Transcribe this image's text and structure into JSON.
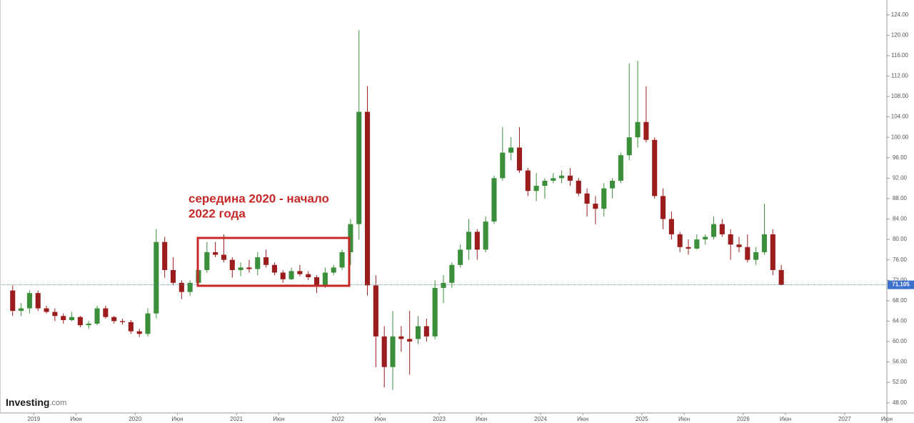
{
  "chart_data": {
    "type": "candlestick",
    "annotation": [
      "середина 2020 - начало",
      "2022 года"
    ],
    "logo": "Investing",
    "logo_suffix": ".com",
    "up_color": "#3b8f3b",
    "down_color": "#9b1c1c",
    "annotation_color": "#c62828",
    "last_price": 71.105,
    "last_price_color": "#3d6fcc",
    "xlim": [
      "2018-09",
      "2027-06"
    ],
    "ylim": [
      46,
      126.9
    ],
    "yticks": [
      {
        "value": 48,
        "label": "48.00"
      },
      {
        "value": 52,
        "label": "52.00"
      },
      {
        "value": 56,
        "label": "56.00"
      },
      {
        "value": 60,
        "label": "60.00"
      },
      {
        "value": 64,
        "label": "64.00"
      },
      {
        "value": 68,
        "label": "68.00"
      },
      {
        "value": 72,
        "label": "72.00"
      },
      {
        "value": 76,
        "label": "76.00"
      },
      {
        "value": 80,
        "label": "80.00"
      },
      {
        "value": 84,
        "label": "84.00"
      },
      {
        "value": 88,
        "label": "88.00"
      },
      {
        "value": 92,
        "label": "92.00"
      },
      {
        "value": 96,
        "label": "96.00"
      },
      {
        "value": 100,
        "label": "100.00"
      },
      {
        "value": 104,
        "label": "104.00"
      },
      {
        "value": 108,
        "label": "108.00"
      },
      {
        "value": 112,
        "label": "112.00"
      },
      {
        "value": 116,
        "label": "116.00"
      },
      {
        "value": 120,
        "label": "120.00"
      },
      {
        "value": 124,
        "label": "124.00"
      }
    ],
    "xticks": [
      {
        "value": "2019-01",
        "label": "2019"
      },
      {
        "value": "2019-06",
        "label": "Июн"
      },
      {
        "value": "2020-01",
        "label": "2020"
      },
      {
        "value": "2020-06",
        "label": "Июн"
      },
      {
        "value": "2021-01",
        "label": "2021"
      },
      {
        "value": "2021-06",
        "label": "Июн"
      },
      {
        "value": "2022-01",
        "label": "2022"
      },
      {
        "value": "2022-06",
        "label": "Июн"
      },
      {
        "value": "2023-01",
        "label": "2023"
      },
      {
        "value": "2023-06",
        "label": "Июн"
      },
      {
        "value": "2024-01",
        "label": "2024"
      },
      {
        "value": "2024-06",
        "label": "Июн"
      },
      {
        "value": "2025-01",
        "label": "2025"
      },
      {
        "value": "2025-06",
        "label": "Июн"
      },
      {
        "value": "2026-01",
        "label": "2026"
      },
      {
        "value": "2026-06",
        "label": "Июн"
      },
      {
        "value": "2027-01",
        "label": "2027"
      },
      {
        "value": "2027-06",
        "label": "Июн"
      }
    ],
    "x": [
      "2018-10",
      "2018-11",
      "2018-12",
      "2019-01",
      "2019-02",
      "2019-03",
      "2019-04",
      "2019-05",
      "2019-06",
      "2019-07",
      "2019-08",
      "2019-09",
      "2019-10",
      "2019-11",
      "2019-12",
      "2020-01",
      "2020-02",
      "2020-03",
      "2020-04",
      "2020-05",
      "2020-06",
      "2020-07",
      "2020-08",
      "2020-09",
      "2020-10",
      "2020-11",
      "2020-12",
      "2021-01",
      "2021-02",
      "2021-03",
      "2021-04",
      "2021-05",
      "2021-06",
      "2021-07",
      "2021-08",
      "2021-09",
      "2021-10",
      "2021-11",
      "2021-12",
      "2022-01",
      "2022-02",
      "2022-03",
      "2022-04",
      "2022-05",
      "2022-06",
      "2022-07",
      "2022-08",
      "2022-09",
      "2022-10",
      "2022-11",
      "2022-12",
      "2023-01",
      "2023-02",
      "2023-03",
      "2023-04",
      "2023-05",
      "2023-06",
      "2023-07",
      "2023-08",
      "2023-09",
      "2023-10",
      "2023-11",
      "2023-12",
      "2024-01",
      "2024-02",
      "2024-03",
      "2024-04",
      "2024-05",
      "2024-06",
      "2024-07",
      "2024-08",
      "2024-09",
      "2024-10",
      "2024-11",
      "2024-12",
      "2025-01",
      "2025-02",
      "2025-03",
      "2025-04",
      "2025-05",
      "2025-06",
      "2025-07",
      "2025-08",
      "2025-09",
      "2025-10",
      "2025-11",
      "2025-12",
      "2026-01",
      "2026-02",
      "2026-03",
      "2026-04",
      "2026-05"
    ],
    "open": [
      70,
      66,
      66.5,
      69.5,
      66.5,
      65.8,
      65,
      64.2,
      64.8,
      63.2,
      63.5,
      66.5,
      64.8,
      64,
      63.8,
      62,
      61.5,
      65.5,
      79.5,
      74,
      71.5,
      69.7,
      71.5,
      74,
      77.5,
      77,
      76,
      74,
      74.5,
      74.2,
      76.5,
      75,
      73.5,
      72.2,
      73.8,
      73.2,
      72.6,
      71,
      73.5,
      74.5,
      77.5,
      83,
      105,
      71,
      61,
      55,
      61,
      60.5,
      60.5,
      63,
      61,
      70.5,
      71.5,
      75,
      78,
      81.5,
      78,
      83.5,
      92,
      97,
      98,
      93.5,
      89.5,
      90.5,
      91.5,
      92,
      92.5,
      91.5,
      89,
      87,
      86,
      90,
      91.5,
      96.5,
      100,
      103,
      99.5,
      88.5,
      84,
      81,
      78.5,
      78.2,
      80,
      80.5,
      83,
      81,
      79,
      78.5,
      76,
      77.5,
      81,
      74
    ],
    "high": [
      71,
      67.5,
      70,
      70,
      67,
      66.5,
      65.5,
      65.8,
      65,
      64,
      67,
      67,
      65,
      64.5,
      64.2,
      62.5,
      66.5,
      82,
      80.5,
      76.5,
      72,
      72,
      75.5,
      79.5,
      79.5,
      81,
      76.5,
      75.5,
      76,
      77.5,
      78,
      75.5,
      74,
      74.5,
      75,
      73.8,
      73,
      74.5,
      75,
      78,
      84,
      121,
      110,
      73,
      63,
      66,
      63,
      66,
      65,
      64.5,
      72,
      73,
      75.5,
      79,
      84,
      82,
      84.5,
      92.5,
      102,
      100,
      102,
      94,
      93,
      92,
      93,
      93.5,
      94,
      92,
      90,
      88.5,
      91,
      92,
      97,
      114.5,
      115,
      110,
      100,
      90,
      85.5,
      81.5,
      80,
      81,
      81,
      84.5,
      84,
      82,
      80.5,
      81,
      78.5,
      87,
      82,
      75
    ],
    "low": [
      65,
      65,
      65.5,
      66,
      65.5,
      64,
      63.5,
      64,
      62.8,
      62.5,
      63.2,
      64.5,
      63.5,
      63.3,
      61.5,
      60.9,
      61,
      64.5,
      72.5,
      71,
      68.3,
      69,
      71,
      73.5,
      76.5,
      75.5,
      72.5,
      72.8,
      73.5,
      73,
      74.5,
      73,
      71.5,
      72,
      72.8,
      72,
      69.5,
      70.5,
      73,
      74,
      75,
      80,
      69,
      55,
      51,
      50.5,
      58,
      53.5,
      59.5,
      60,
      60.5,
      67.5,
      70.5,
      74.5,
      76,
      76,
      77.5,
      83,
      91.5,
      95.5,
      93,
      88.5,
      87.5,
      88,
      91,
      91,
      90.5,
      88.5,
      84.5,
      83,
      84.5,
      88,
      91,
      95.5,
      98,
      99,
      88,
      82,
      80,
      77.5,
      77,
      78,
      79,
      80,
      80.5,
      76,
      77.5,
      75.5,
      75,
      77,
      73,
      71
    ],
    "close": [
      66,
      66.5,
      69.5,
      66.5,
      65.8,
      65,
      64.2,
      64.8,
      63.2,
      63.5,
      66.5,
      64.8,
      64,
      63.8,
      62,
      61.5,
      65.5,
      79.5,
      74,
      71.5,
      69.7,
      71.5,
      74,
      77.5,
      77,
      76,
      74,
      74.5,
      74.2,
      76.5,
      75,
      73.5,
      72.2,
      73.8,
      73.2,
      72.6,
      71,
      73.5,
      74.5,
      77.5,
      83,
      105,
      71,
      61,
      55,
      61,
      60.5,
      60,
      63,
      61,
      70.5,
      71.5,
      75,
      78,
      81.5,
      78,
      83.5,
      92,
      97,
      98,
      93.5,
      89.5,
      90.5,
      91.5,
      92,
      92.5,
      91.5,
      89,
      87,
      86,
      90,
      91.5,
      96.5,
      100,
      103,
      99.5,
      88.5,
      84,
      81,
      78.5,
      78.2,
      80,
      80.5,
      83,
      81,
      79,
      78.5,
      76,
      77.5,
      81,
      74,
      71.105
    ]
  }
}
